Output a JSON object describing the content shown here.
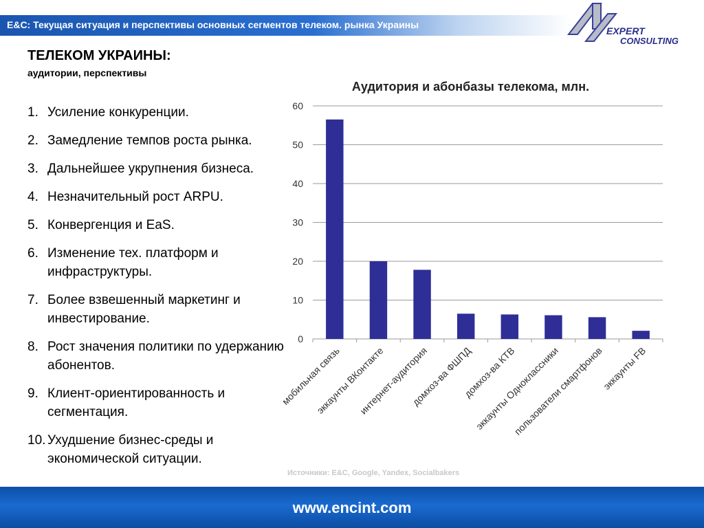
{
  "header": {
    "title": "E&C: Текущая ситуация и перспективы основных сегментов телеком.  рынка Украины"
  },
  "logo": {
    "line1": "EXPERT",
    "line2": "CONSULTING"
  },
  "section": {
    "title": "ТЕЛЕКОМ УКРАИНЫ:",
    "subtitle": "аудитории, перспективы"
  },
  "points": [
    {
      "num": "1.",
      "text": "Усиление конкуренции."
    },
    {
      "num": "2.",
      "text": "Замедление темпов роста рынка."
    },
    {
      "num": "3.",
      "text": "Дальнейшее укрупнения бизнеса."
    },
    {
      "num": "4.",
      "text": "Незначительный рост ARPU."
    },
    {
      "num": "5.",
      "text": "Конвергенция и EaS."
    },
    {
      "num": "6.",
      "text": "Изменение тех. платформ и инфраструктуры."
    },
    {
      "num": "7.",
      "text": "Более взвешенный маркетинг и инвестирование."
    },
    {
      "num": "8.",
      "text": "Рост значения политики по удержанию абонентов."
    },
    {
      "num": "9.",
      "text": "Клиент-ориентированность и сегментация."
    },
    {
      "num": "10.",
      "text": "Ухудшение бизнес-среды и экономической ситуации."
    }
  ],
  "chart_data": {
    "type": "bar",
    "title": "Аудитория и абонбазы телекома, млн.",
    "categories": [
      "мобильная связь",
      "эккаунты ВКонтакте",
      "интернет-аудитория",
      "домхоз-ва ФШПД",
      "домхоз-ва КТВ",
      "эккаунты Одноклассники",
      "пользователи смартфонов",
      "эккаунты FB"
    ],
    "values": [
      56.5,
      20,
      17.8,
      6.5,
      6.3,
      6.1,
      5.6,
      2.1
    ],
    "ylim": [
      0,
      60
    ],
    "yticks": [
      "0",
      "10",
      "20",
      "30",
      "40",
      "50",
      "60"
    ],
    "grid": true,
    "bar_color": "#2e2e96"
  },
  "source": "Источники: E&C, Google, Yandex, Socialbakers",
  "footer": {
    "url": "www.encint.com"
  }
}
